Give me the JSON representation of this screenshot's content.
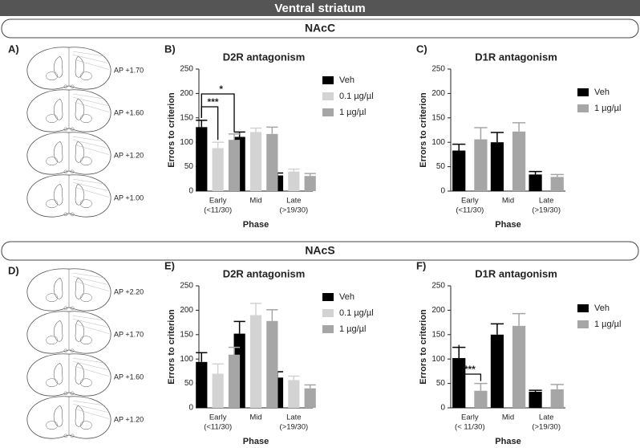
{
  "header": {
    "title": "Ventral striatum"
  },
  "sections": [
    {
      "title": "NAcC"
    },
    {
      "title": "NAcS"
    }
  ],
  "atlas": [
    {
      "label": "A)",
      "ap": [
        "AP +1.70",
        "AP +1.60",
        "AP +1.20",
        "AP +1.00"
      ]
    },
    {
      "label": "D)",
      "ap": [
        "AP +2.20",
        "AP +1.70",
        "AP +1.60",
        "AP +1.20"
      ]
    }
  ],
  "chart_data": [
    {
      "type": "bar",
      "panel": "B)",
      "title": "D2R antagonism",
      "xlabel": "Phase",
      "ylabel": "Errors to criterion",
      "categories": [
        [
          "Early",
          "(<11/30)"
        ],
        [
          "Mid"
        ],
        [
          "Late",
          "(>19/30)"
        ]
      ],
      "series": [
        {
          "name": "Veh",
          "color": "#000000",
          "values": [
            131,
            111,
            32
          ],
          "errors": [
            14,
            10,
            5
          ]
        },
        {
          "name": "0.1 µg/µl",
          "color": "#d3d3d3",
          "values": [
            88,
            121,
            40
          ],
          "errors": [
            12,
            8,
            5
          ]
        },
        {
          "name": "1 µg/µl",
          "color": "#a6a6a6",
          "values": [
            105,
            117,
            31
          ],
          "errors": [
            12,
            14,
            5
          ]
        }
      ],
      "ylim": [
        0,
        250
      ],
      "yticks": [
        0,
        50,
        100,
        150,
        200,
        250
      ],
      "annotations": [
        "***",
        "*"
      ]
    },
    {
      "type": "bar",
      "panel": "C)",
      "title": "D1R antagonism",
      "xlabel": "Phase",
      "ylabel": "Errors to criterion",
      "categories": [
        [
          "Early",
          "(<11/30)"
        ],
        [
          "Mid"
        ],
        [
          "Late",
          "(>19/30)"
        ]
      ],
      "series": [
        {
          "name": "Veh",
          "color": "#000000",
          "values": [
            83,
            100,
            34
          ],
          "errors": [
            13,
            20,
            6
          ]
        },
        {
          "name": "1 µg/µl",
          "color": "#a6a6a6",
          "values": [
            106,
            122,
            29
          ],
          "errors": [
            24,
            18,
            5
          ]
        }
      ],
      "ylim": [
        0,
        250
      ],
      "yticks": [
        0,
        50,
        100,
        150,
        200,
        250
      ],
      "annotations": []
    },
    {
      "type": "bar",
      "panel": "E)",
      "title": "D2R antagonism",
      "xlabel": "Phase",
      "ylabel": "Errors to criterion",
      "categories": [
        [
          "Early",
          "(<11/30)"
        ],
        [
          "Mid"
        ],
        [
          "Late",
          "(>19/30)"
        ]
      ],
      "series": [
        {
          "name": "Veh",
          "color": "#000000",
          "values": [
            94,
            152,
            62
          ],
          "errors": [
            19,
            25,
            12
          ]
        },
        {
          "name": "0.1 µg/µl",
          "color": "#d3d3d3",
          "values": [
            70,
            190,
            57
          ],
          "errors": [
            20,
            24,
            8
          ]
        },
        {
          "name": "1 µg/µl",
          "color": "#a6a6a6",
          "values": [
            109,
            178,
            40
          ],
          "errors": [
            15,
            23,
            7
          ]
        }
      ],
      "ylim": [
        0,
        250
      ],
      "yticks": [
        0,
        50,
        100,
        150,
        200,
        250
      ],
      "annotations": []
    },
    {
      "type": "bar",
      "panel": "F)",
      "title": "D1R antagonism",
      "xlabel": "Phase",
      "ylabel": "Errors to criterion",
      "categories": [
        [
          "Early",
          "(< 11/30)"
        ],
        [
          "Mid"
        ],
        [
          "Late",
          "(>19/30)"
        ]
      ],
      "series": [
        {
          "name": "Veh",
          "color": "#000000",
          "values": [
            102,
            150,
            33
          ],
          "errors": [
            22,
            22,
            3
          ]
        },
        {
          "name": "1 µg/µl",
          "color": "#a6a6a6",
          "values": [
            35,
            168,
            38
          ],
          "errors": [
            15,
            25,
            10
          ]
        }
      ],
      "ylim": [
        0,
        250
      ],
      "yticks": [
        0,
        50,
        100,
        150,
        200,
        250
      ],
      "annotations": [
        "***"
      ]
    }
  ]
}
